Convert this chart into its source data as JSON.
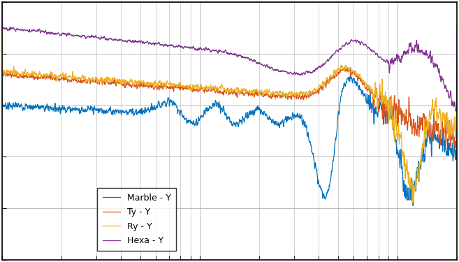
{
  "legend_labels": [
    "Marble - Y",
    "Ty - Y",
    "Ry - Y",
    "Hexa - Y"
  ],
  "colors": [
    "#0072BD",
    "#D95319",
    "#EDB120",
    "#7E2F8E"
  ],
  "background_color": "#ffffff",
  "grid_color": "#b0b0b0",
  "figsize": [
    6.57,
    3.75
  ],
  "dpi": 100,
  "freq_min": 1,
  "freq_max": 200,
  "amp_min": -160,
  "amp_max": -60
}
